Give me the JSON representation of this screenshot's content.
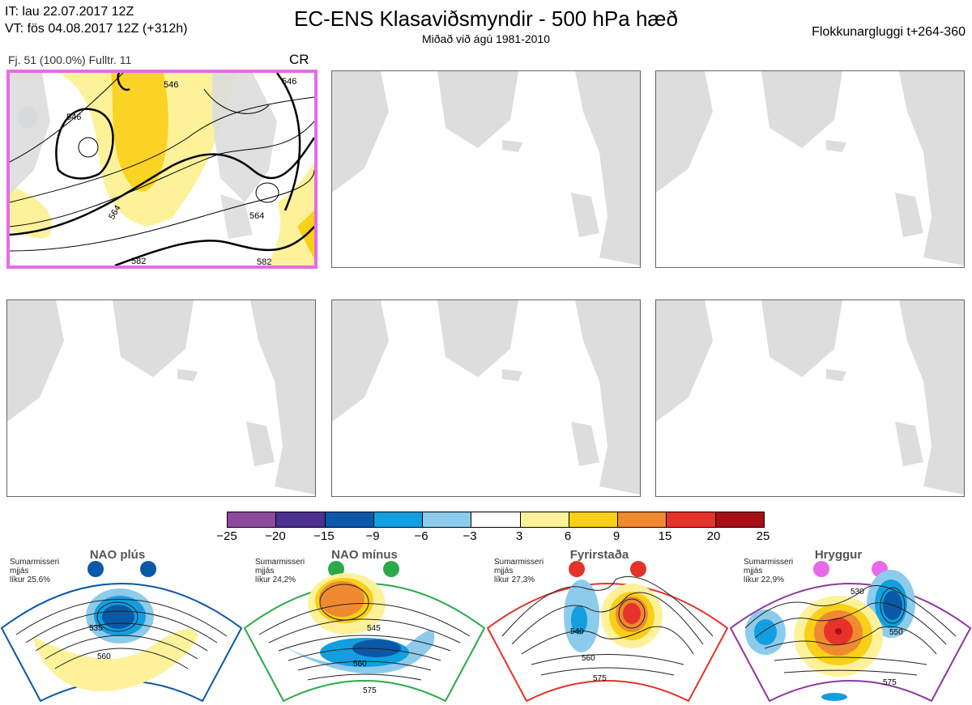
{
  "header": {
    "it": "IT: lau 22.07.2017 12Z",
    "vt": "VT: fös 04.08.2017 12Z  (+312h)",
    "title": "EC-ENS Klasaviðsmyndir - 500 hPa hæð",
    "subtitle": "Miðað við ágú 1981-2010",
    "window": "Flokkunargluggi t+264-360"
  },
  "panel_main": {
    "info": "Fj. 51 (100.0%)   Fulltr. 11",
    "code": "CR",
    "contour_labels": [
      "546",
      "546",
      "564",
      "564",
      "582",
      "582",
      "546"
    ]
  },
  "colorbar": {
    "colors": [
      "#8b4a9c",
      "#4b2f91",
      "#0a58a8",
      "#129fe0",
      "#8ccbeb",
      "#ffffff",
      "#fdf29a",
      "#f9cf17",
      "#f08a31",
      "#e63228",
      "#a50f15"
    ],
    "labels": [
      "−25",
      "−20",
      "−15",
      "−9",
      "−6",
      "−3",
      "3",
      "6",
      "9",
      "15",
      "20",
      "25"
    ]
  },
  "regimes": [
    {
      "name": "NAO plús",
      "season": "Sumarmisseri",
      "smooth": "mjjás",
      "prob": "líkur 25,6%",
      "color": "#0a58a8",
      "labels": [
        "535",
        "560"
      ]
    },
    {
      "name": "NAO mínus",
      "season": "Sumarmisseri",
      "smooth": "mjjás",
      "prob": "líkur 24,2%",
      "color": "#2aaa4a",
      "labels": [
        "545",
        "560",
        "575"
      ]
    },
    {
      "name": "Fyrirstaða",
      "season": "Sumarmisseri",
      "smooth": "mjjás",
      "prob": "líkur 27,3%",
      "color": "#e63228",
      "labels": [
        "540",
        "560",
        "575"
      ]
    },
    {
      "name": "Hryggur",
      "season": "Sumarmisseri",
      "smooth": "mjjás",
      "prob": "líkur 22,9%",
      "color": "#8b3a9c",
      "labels": [
        "530",
        "550",
        "575"
      ]
    }
  ]
}
